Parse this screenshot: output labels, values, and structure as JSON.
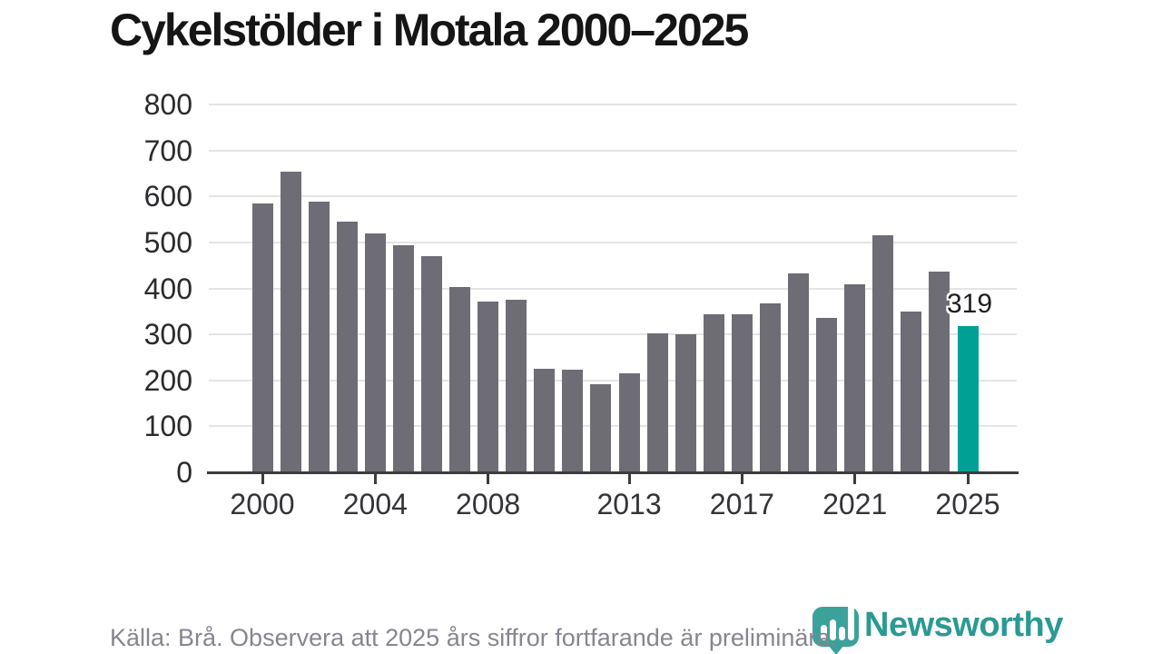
{
  "title": "Cykelstölder i Motala 2000–2025",
  "chart_data": {
    "type": "bar",
    "title": "Cykelstölder i Motala 2000–2025",
    "xlabel": "",
    "ylabel": "",
    "ylim": [
      0,
      800
    ],
    "grid": true,
    "categories": [
      2000,
      2001,
      2002,
      2003,
      2004,
      2005,
      2006,
      2007,
      2008,
      2009,
      2010,
      2011,
      2012,
      2013,
      2014,
      2015,
      2016,
      2017,
      2018,
      2019,
      2020,
      2021,
      2022,
      2023,
      2024,
      2025
    ],
    "values": [
      585,
      653,
      589,
      546,
      520,
      494,
      470,
      403,
      371,
      376,
      226,
      223,
      191,
      216,
      303,
      300,
      344,
      344,
      367,
      433,
      336,
      408,
      515,
      350,
      436,
      319
    ],
    "y_ticks": [
      0,
      100,
      200,
      300,
      400,
      500,
      600,
      700,
      800
    ],
    "x_tick_years": [
      2000,
      2004,
      2008,
      2013,
      2017,
      2021,
      2025
    ],
    "highlight_index": 25,
    "highlight_label": "319",
    "colors": {
      "bar": "#6e6c75",
      "highlight": "#00a096",
      "grid": "#e4e4e6",
      "axis": "#3c3c3c"
    }
  },
  "footer": {
    "source_note": "Källa: Brå. Observera att 2025 års siffror fortfarande är preliminära."
  },
  "logo": {
    "wordmark": "Newsworthy",
    "icon": "newsworthy-pin-bar-chart-icon",
    "icon_color": "#3ba29b",
    "text_color": "#2a9a92"
  }
}
